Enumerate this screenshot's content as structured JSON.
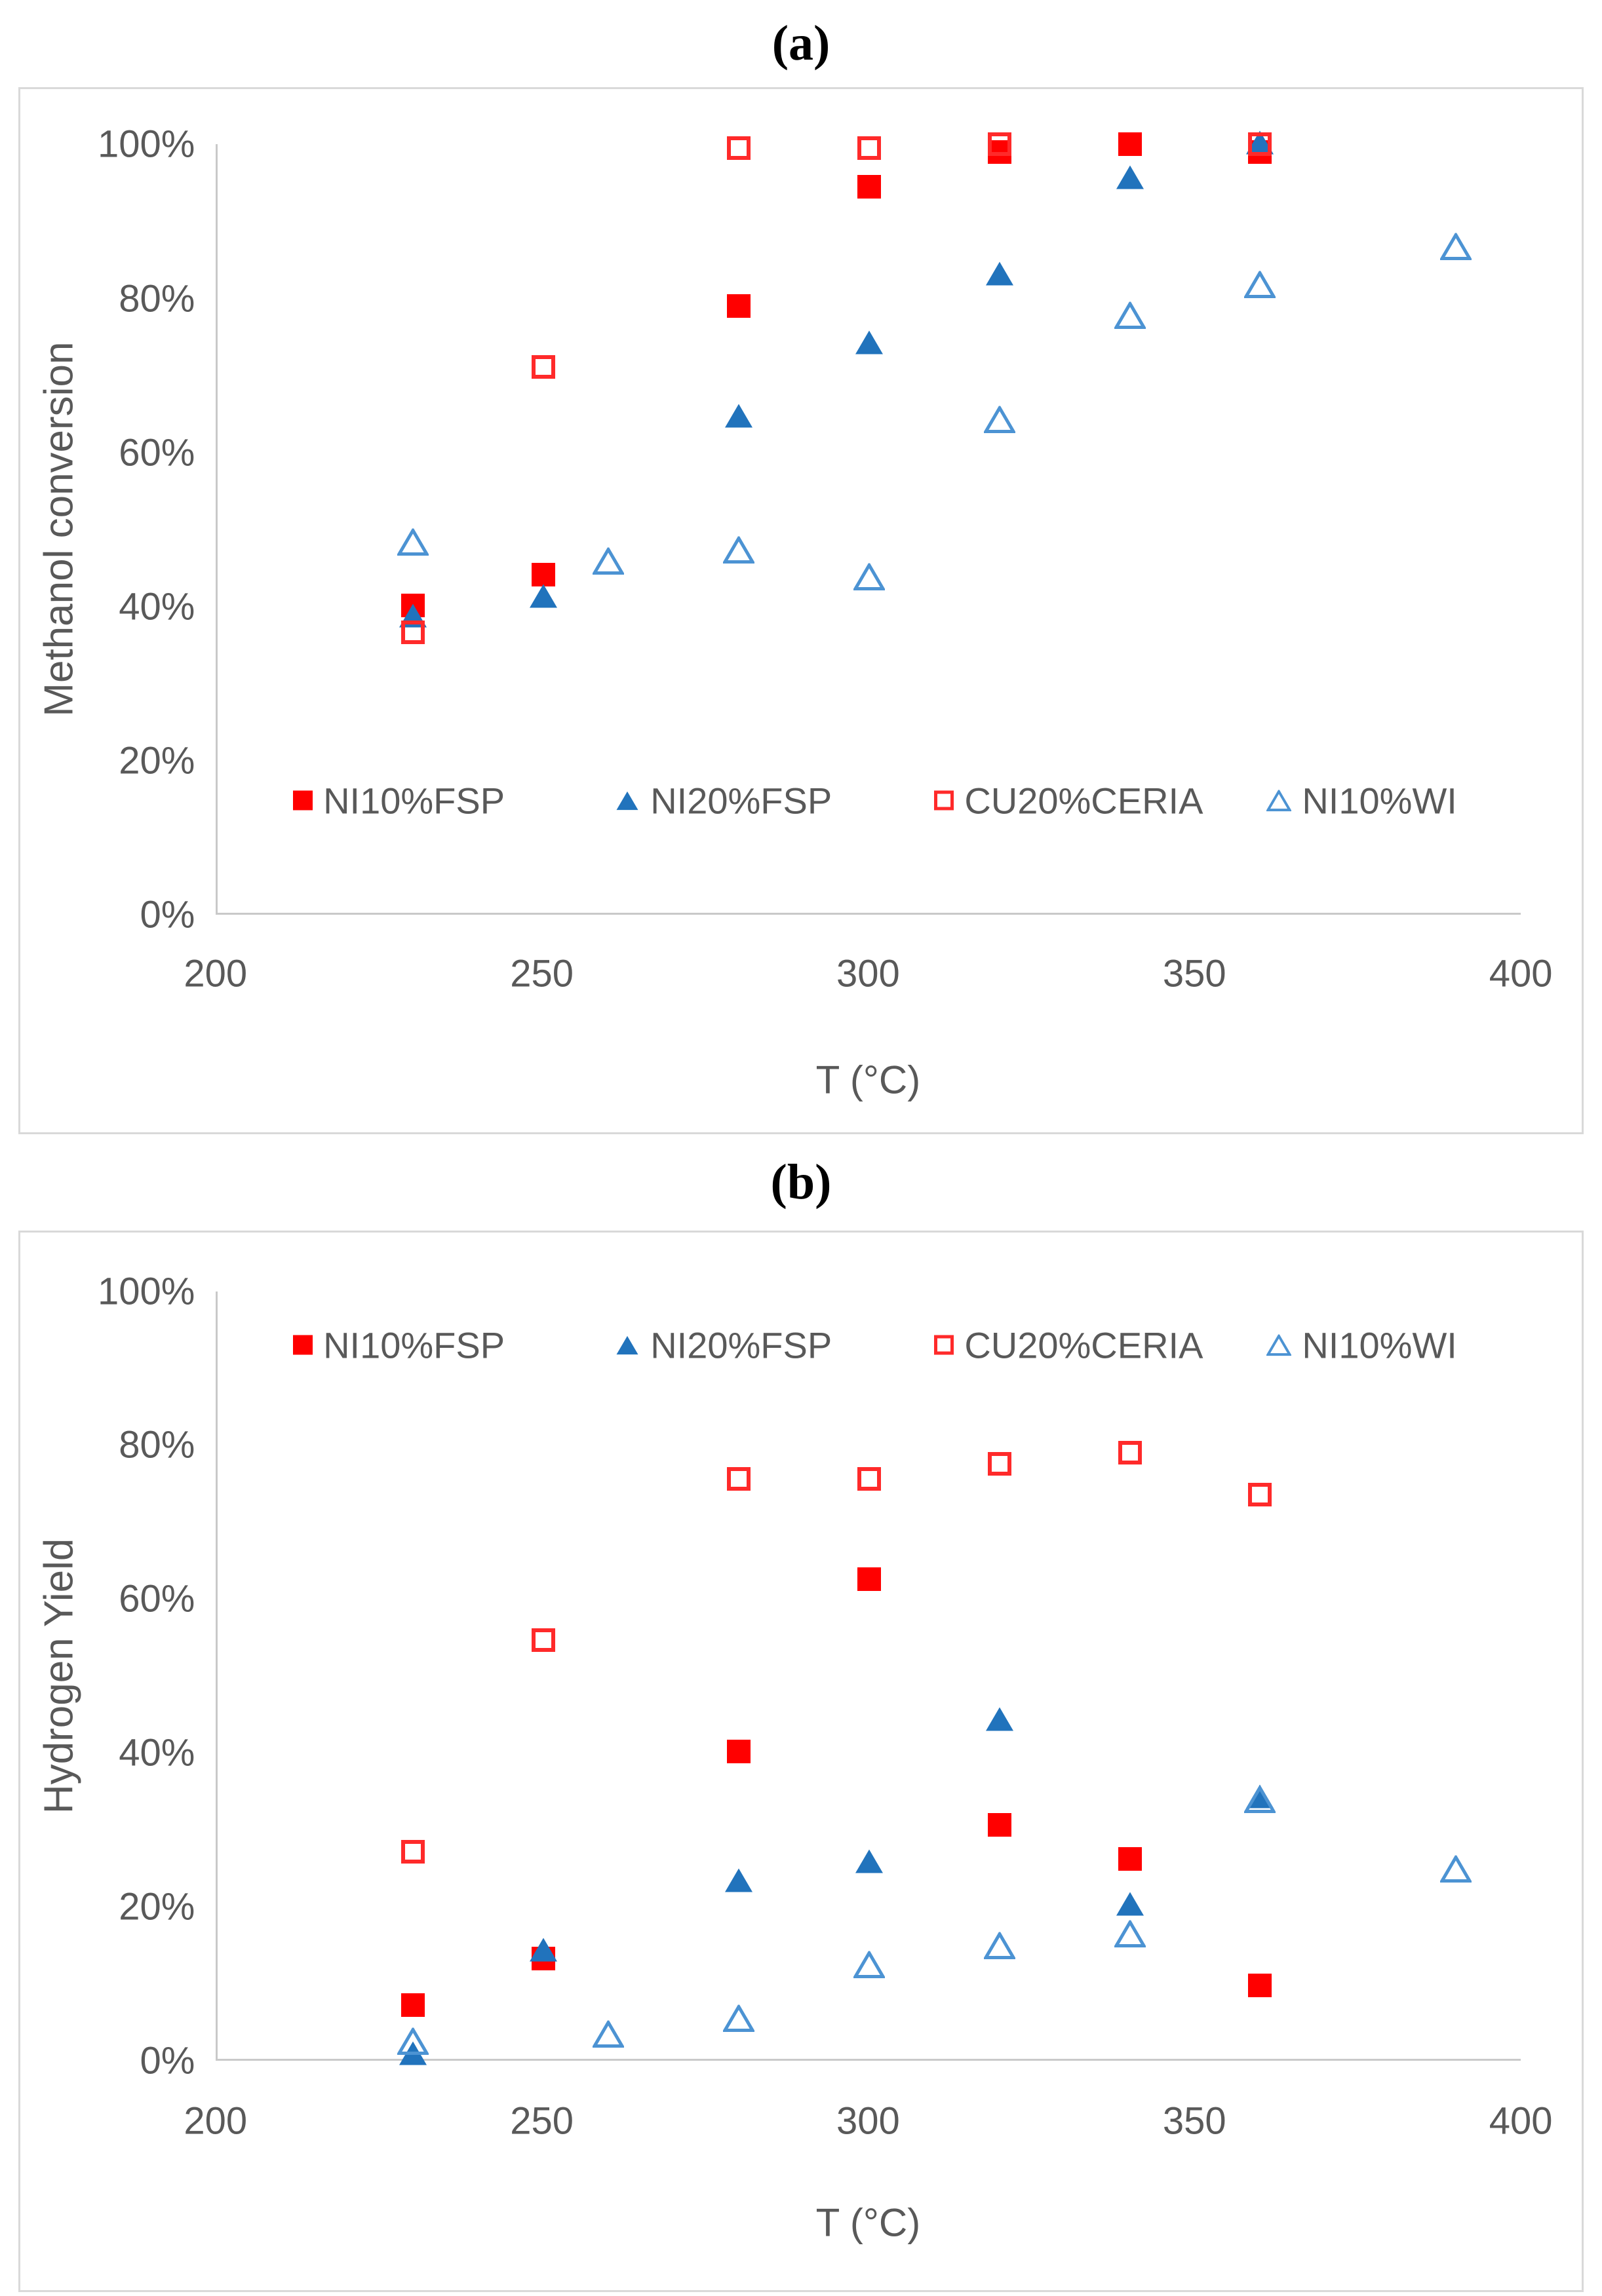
{
  "panels": {
    "a_label": "(a)",
    "b_label": "(b)"
  },
  "colors": {
    "red_filled": "#FF0000",
    "red_open": "#FF2A2A",
    "blue_filled": "#2173BC",
    "blue_open": "#4C93D3",
    "axis_text": "#595959",
    "axis_line": "#C9C9C9",
    "frame_border": "#D9D9D9"
  },
  "chart_data": [
    {
      "type": "scatter",
      "panel": "(a)",
      "xlabel": "T (°C)",
      "ylabel": "Methanol conversion",
      "xlim": [
        200,
        400
      ],
      "ylim": [
        0,
        100
      ],
      "xticks": [
        200,
        250,
        300,
        350,
        400
      ],
      "ytick_labels": [
        "0%",
        "20%",
        "40%",
        "60%",
        "80%",
        "100%"
      ],
      "grid": false,
      "legend_position": "inside-bottom",
      "legend_top_pct": 85.4,
      "legend_item_x_pct": [
        5.8,
        30.5,
        55.0,
        80.5
      ],
      "series": [
        {
          "name": "NI10%FSP",
          "marker": "square-filled",
          "color": "#FF0000",
          "points": [
            [
              230,
              40
            ],
            [
              250,
              44
            ],
            [
              280,
              79
            ],
            [
              300,
              94.5
            ],
            [
              320,
              99
            ],
            [
              340,
              100
            ],
            [
              360,
              99
            ]
          ]
        },
        {
          "name": "NI20%FSP",
          "marker": "triangle-filled",
          "color": "#2173BC",
          "points": [
            [
              230,
              38.5
            ],
            [
              250,
              41
            ],
            [
              280,
              64.5
            ],
            [
              300,
              74
            ],
            [
              320,
              83
            ],
            [
              340,
              95.5
            ],
            [
              360,
              100
            ]
          ]
        },
        {
          "name": "CU20%CERIA",
          "marker": "square-open",
          "color": "#FF2A2A",
          "points": [
            [
              230,
              36.5
            ],
            [
              250,
              71
            ],
            [
              280,
              99.5
            ],
            [
              300,
              99.5
            ],
            [
              320,
              100
            ],
            [
              360,
              100
            ]
          ]
        },
        {
          "name": "NI10%WI",
          "marker": "triangle-open",
          "color": "#4C93D3",
          "points": [
            [
              230,
              48
            ],
            [
              260,
              45.5
            ],
            [
              280,
              47
            ],
            [
              300,
              43.5
            ],
            [
              320,
              64
            ],
            [
              340,
              77.5
            ],
            [
              360,
              81.5
            ],
            [
              390,
              86.5
            ]
          ]
        }
      ]
    },
    {
      "type": "scatter",
      "panel": "(b)",
      "xlabel": "T (°C)",
      "ylabel": "Hydrogen Yield",
      "xlim": [
        200,
        400
      ],
      "ylim": [
        0,
        100
      ],
      "xticks": [
        200,
        250,
        300,
        350,
        400
      ],
      "ytick_labels": [
        "0%",
        "20%",
        "40%",
        "60%",
        "80%",
        "100%"
      ],
      "grid": false,
      "legend_position": "inside-top",
      "legend_top_pct": 7.0,
      "legend_item_x_pct": [
        5.8,
        30.5,
        55.0,
        80.5
      ],
      "series": [
        {
          "name": "NI10%FSP",
          "marker": "square-filled",
          "color": "#FF0000",
          "points": [
            [
              230,
              7
            ],
            [
              250,
              13
            ],
            [
              280,
              40
            ],
            [
              300,
              62.5
            ],
            [
              320,
              30.5
            ],
            [
              340,
              26
            ],
            [
              360,
              9.5
            ]
          ]
        },
        {
          "name": "NI20%FSP",
          "marker": "triangle-filled",
          "color": "#2173BC",
          "points": [
            [
              230,
              0.5
            ],
            [
              250,
              14
            ],
            [
              280,
              23
            ],
            [
              300,
              25.5
            ],
            [
              320,
              44
            ],
            [
              340,
              20
            ],
            [
              360,
              34
            ]
          ]
        },
        {
          "name": "CU20%CERIA",
          "marker": "square-open",
          "color": "#FF2A2A",
          "points": [
            [
              230,
              27
            ],
            [
              250,
              54.5
            ],
            [
              280,
              75.5
            ],
            [
              300,
              75.5
            ],
            [
              320,
              77.5
            ],
            [
              340,
              79
            ],
            [
              360,
              73.5
            ]
          ]
        },
        {
          "name": "NI10%WI",
          "marker": "triangle-open",
          "color": "#4C93D3",
          "points": [
            [
              230,
              2
            ],
            [
              260,
              3
            ],
            [
              280,
              5
            ],
            [
              300,
              12
            ],
            [
              320,
              14.5
            ],
            [
              340,
              16
            ],
            [
              360,
              33.5
            ],
            [
              390,
              24.5
            ]
          ]
        }
      ]
    }
  ]
}
